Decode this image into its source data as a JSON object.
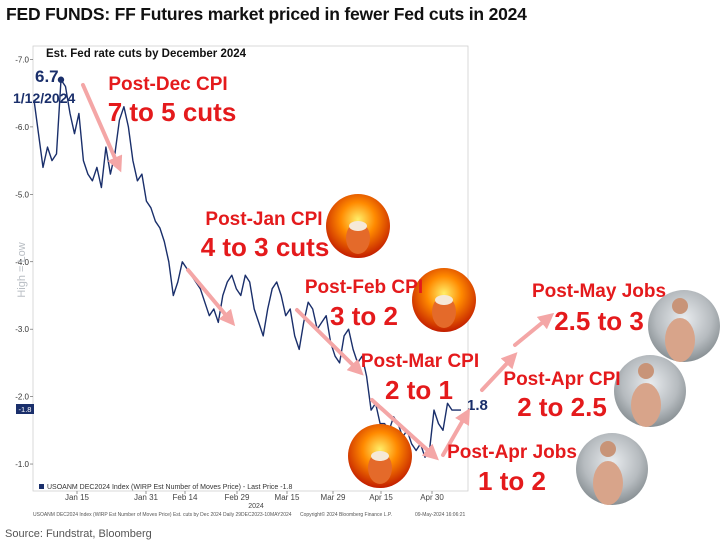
{
  "header": {
    "title": "FED FUNDS: FF Futures market priced in fewer Fed cuts in 2024",
    "source": "Source: Fundstrat, Bloomberg"
  },
  "chart_data": {
    "type": "line",
    "title": "Est. Fed rate cuts by December 2024",
    "ylabel": "High = Low",
    "ylim": [
      -7.2,
      -0.6
    ],
    "y_ticks": [
      "-7.0",
      "-6.0",
      "-5.0",
      "-4.0",
      "-3.0",
      "-2.0",
      "-1.0"
    ],
    "x_tick_labels": [
      "Jan 15",
      "Jan 31",
      "Feb 14",
      "Feb 29",
      "Mar 15",
      "Mar 29",
      "Apr 15",
      "Apr 30"
    ],
    "x_year_label": "2024",
    "last_value_tag": "-1.8",
    "legend": "USOANM DEC2024 Index (WIRP Est Number of Moves Price) - Last Price -1.8",
    "footer_left": "USOANM DEC2024 Index (WIRP Est Number of Moves Price) Est. cuts by Dec 2024  Daily 29DEC2023-10MAY2024",
    "footer_mid": "Copyright© 2024 Bloomberg Finance L.P.",
    "footer_right": "09-May-2024 16:06:21",
    "start_label_value": "6.7",
    "start_label_date": "1/12/2024",
    "end_label_value": "1.8",
    "series": [
      {
        "color": "#1a2f6b",
        "values": [
          -6.4,
          -5.9,
          -5.4,
          -5.7,
          -5.5,
          -5.6,
          -6.7,
          -6.6,
          -6.2,
          -5.9,
          -6.2,
          -5.5,
          -5.3,
          -5.2,
          -5.4,
          -5.1,
          -5.7,
          -5.3,
          -5.6,
          -6.1,
          -6.3,
          -6.0,
          -5.5,
          -5.2,
          -5.3,
          -4.9,
          -4.8,
          -4.6,
          -4.5,
          -4.3,
          -4.0,
          -3.5,
          -3.7,
          -4.0,
          -3.9,
          -3.8,
          -3.7,
          -3.6,
          -3.4,
          -3.2,
          -3.3,
          -3.1,
          -3.5,
          -3.7,
          -3.8,
          -3.6,
          -3.5,
          -3.8,
          -3.7,
          -3.3,
          -3.1,
          -2.9,
          -3.3,
          -3.6,
          -3.7,
          -3.5,
          -3.2,
          -3.3,
          -2.9,
          -2.7,
          -3.1,
          -3.4,
          -3.3,
          -3.0,
          -3.1,
          -3.2,
          -2.8,
          -2.6,
          -2.5,
          -2.9,
          -3.0,
          -2.7,
          -2.5,
          -2.6,
          -2.3,
          -1.8,
          -1.9,
          -1.6,
          -1.6,
          -1.5,
          -1.7,
          -1.6,
          -1.4,
          -1.5,
          -1.3,
          -1.2,
          -1.3,
          -1.1,
          -1.2,
          -1.8,
          -1.6,
          -1.5,
          -1.9,
          -1.8,
          -1.8,
          -1.8
        ]
      }
    ],
    "annotations": [
      {
        "line1": "Post-Dec CPI",
        "line2": "7 to 5 cuts"
      },
      {
        "line1": "Post-Jan CPI",
        "line2": "4 to 3 cuts"
      },
      {
        "line1": "Post-Feb CPI",
        "line2": "3 to 2"
      },
      {
        "line1": "Post-Mar CPI",
        "line2": "2 to 1"
      },
      {
        "line1": "Post-Apr Jobs",
        "line2": "1 to 2"
      },
      {
        "line1": "Post-Apr CPI",
        "line2": "2 to 2.5"
      },
      {
        "line1": "Post-May Jobs",
        "line2": "2.5 to 3"
      }
    ],
    "images": [
      {
        "icon": "flaming-muppet-photo"
      },
      {
        "icon": "flaming-muppet-photo"
      },
      {
        "icon": "flaming-muppet-photo"
      },
      {
        "icon": "shirtless-man-photo"
      },
      {
        "icon": "shirtless-man-photo"
      },
      {
        "icon": "shirtless-man-photo"
      }
    ],
    "colors": {
      "line": "#1a2f6b",
      "arrow": "#f4a6a6",
      "annotation": "#e41a1c"
    }
  }
}
